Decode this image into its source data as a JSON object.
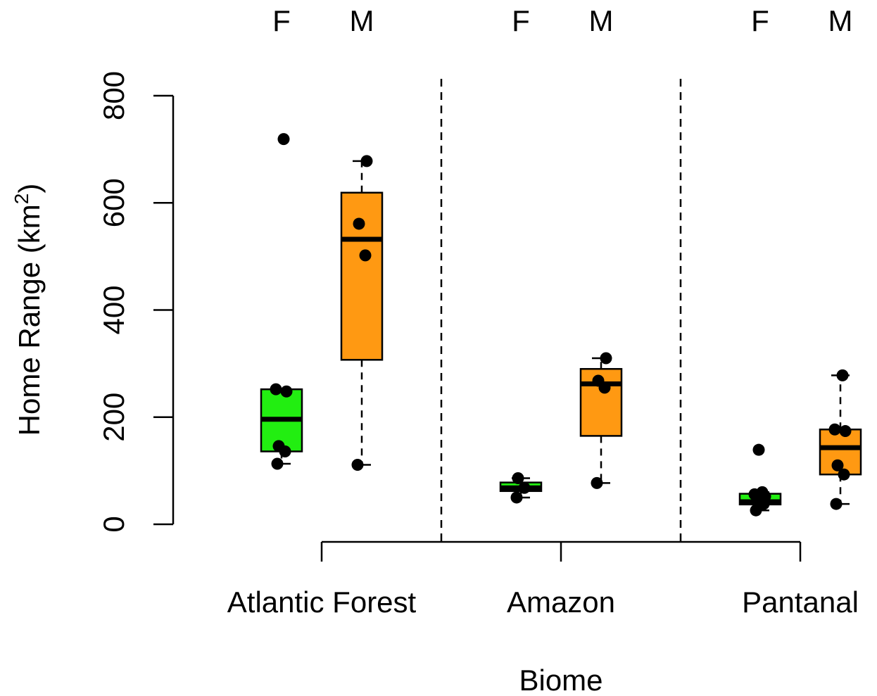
{
  "chart_data": {
    "type": "boxplot",
    "xlabel": "Biome",
    "ylabel": "Home Range (km",
    "ylabel_superscript": "2",
    "ylabel_close": ")",
    "y_ticks": [
      "0",
      "200",
      "400",
      "600",
      "800"
    ],
    "ylim": [
      0,
      800
    ],
    "categories": [
      "Atlantic Forest",
      "Amazon",
      "Pantanal"
    ],
    "sexes": [
      "F",
      "M"
    ],
    "colors": {
      "F": "#22ee11",
      "M": "#ff9912"
    },
    "groups": [
      {
        "biome": "Atlantic Forest",
        "sex": "F",
        "whisker_low": 113,
        "q1": 136,
        "median": 196,
        "q3": 252,
        "whisker_high": 252,
        "points": [
          113,
          136,
          146,
          248,
          252,
          719
        ]
      },
      {
        "biome": "Atlantic Forest",
        "sex": "M",
        "whisker_low": 111,
        "q1": 307,
        "median": 532,
        "q3": 619,
        "whisker_high": 678,
        "points": [
          111,
          502,
          561,
          678
        ]
      },
      {
        "biome": "Amazon",
        "sex": "F",
        "whisker_low": 50,
        "q1": 62,
        "median": 68,
        "q3": 78,
        "whisker_high": 86,
        "points": [
          50,
          68,
          86
        ]
      },
      {
        "biome": "Amazon",
        "sex": "M",
        "whisker_low": 77,
        "q1": 165,
        "median": 262,
        "q3": 290,
        "whisker_high": 310,
        "points": [
          77,
          255,
          268,
          310
        ]
      },
      {
        "biome": "Pantanal",
        "sex": "F",
        "whisker_low": 26,
        "q1": 37,
        "median": 42,
        "q3": 57,
        "whisker_high": 60,
        "points": [
          26,
          38,
          44,
          52,
          56,
          60,
          139
        ]
      },
      {
        "biome": "Pantanal",
        "sex": "M",
        "whisker_low": 38,
        "q1": 93,
        "median": 143,
        "q3": 177,
        "whisker_high": 278,
        "points": [
          38,
          93,
          110,
          174,
          177,
          278
        ]
      }
    ]
  }
}
